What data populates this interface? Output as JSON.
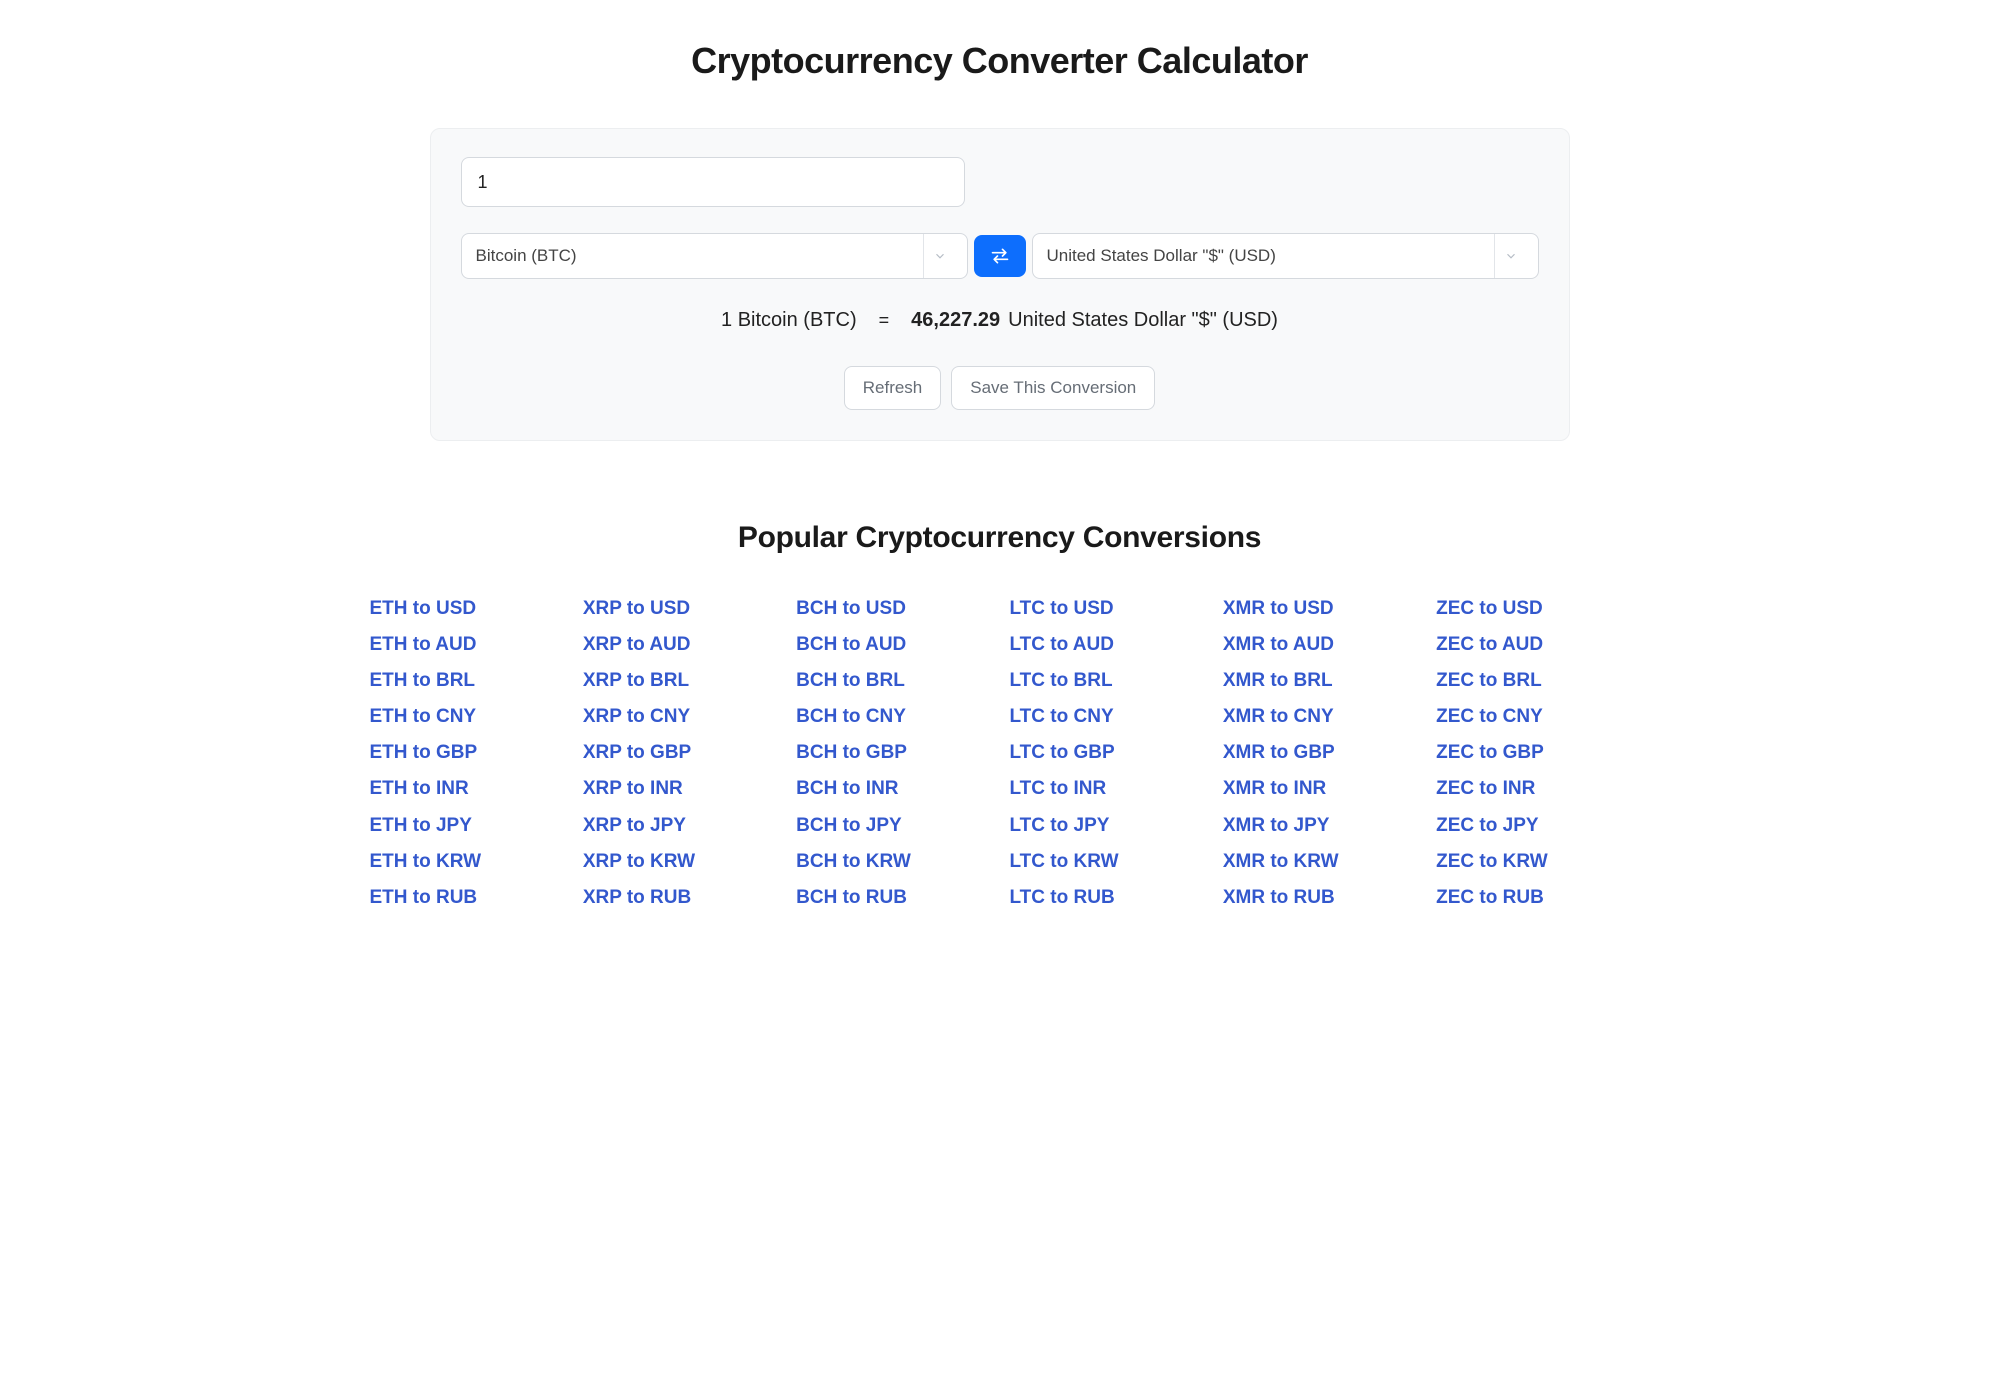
{
  "page": {
    "title": "Cryptocurrency Converter Calculator"
  },
  "converter": {
    "amount_value": "1",
    "from_currency": "Bitcoin (BTC)",
    "to_currency": "United States Dollar \"$\" (USD)",
    "result": {
      "left": "1 Bitcoin (BTC)",
      "equals": "=",
      "value": "46,227.29",
      "right_unit": "United States Dollar \"$\" (USD)"
    },
    "buttons": {
      "refresh": "Refresh",
      "save": "Save This Conversion"
    },
    "colors": {
      "card_bg": "#f8f9fa",
      "border": "#d5d9de",
      "swap_bg": "#0d6efd",
      "link": "#3358cd"
    }
  },
  "popular": {
    "title": "Popular Cryptocurrency Conversions",
    "columns": [
      [
        "ETH to USD",
        "ETH to AUD",
        "ETH to BRL",
        "ETH to CNY",
        "ETH to GBP",
        "ETH to INR",
        "ETH to JPY",
        "ETH to KRW",
        "ETH to RUB"
      ],
      [
        "XRP to USD",
        "XRP to AUD",
        "XRP to BRL",
        "XRP to CNY",
        "XRP to GBP",
        "XRP to INR",
        "XRP to JPY",
        "XRP to KRW",
        "XRP to RUB"
      ],
      [
        "BCH to USD",
        "BCH to AUD",
        "BCH to BRL",
        "BCH to CNY",
        "BCH to GBP",
        "BCH to INR",
        "BCH to JPY",
        "BCH to KRW",
        "BCH to RUB"
      ],
      [
        "LTC to USD",
        "LTC to AUD",
        "LTC to BRL",
        "LTC to CNY",
        "LTC to GBP",
        "LTC to INR",
        "LTC to JPY",
        "LTC to KRW",
        "LTC to RUB"
      ],
      [
        "XMR to USD",
        "XMR to AUD",
        "XMR to BRL",
        "XMR to CNY",
        "XMR to GBP",
        "XMR to INR",
        "XMR to JPY",
        "XMR to KRW",
        "XMR to RUB"
      ],
      [
        "ZEC to USD",
        "ZEC to AUD",
        "ZEC to BRL",
        "ZEC to CNY",
        "ZEC to GBP",
        "ZEC to INR",
        "ZEC to JPY",
        "ZEC to KRW",
        "ZEC to RUB"
      ]
    ]
  }
}
